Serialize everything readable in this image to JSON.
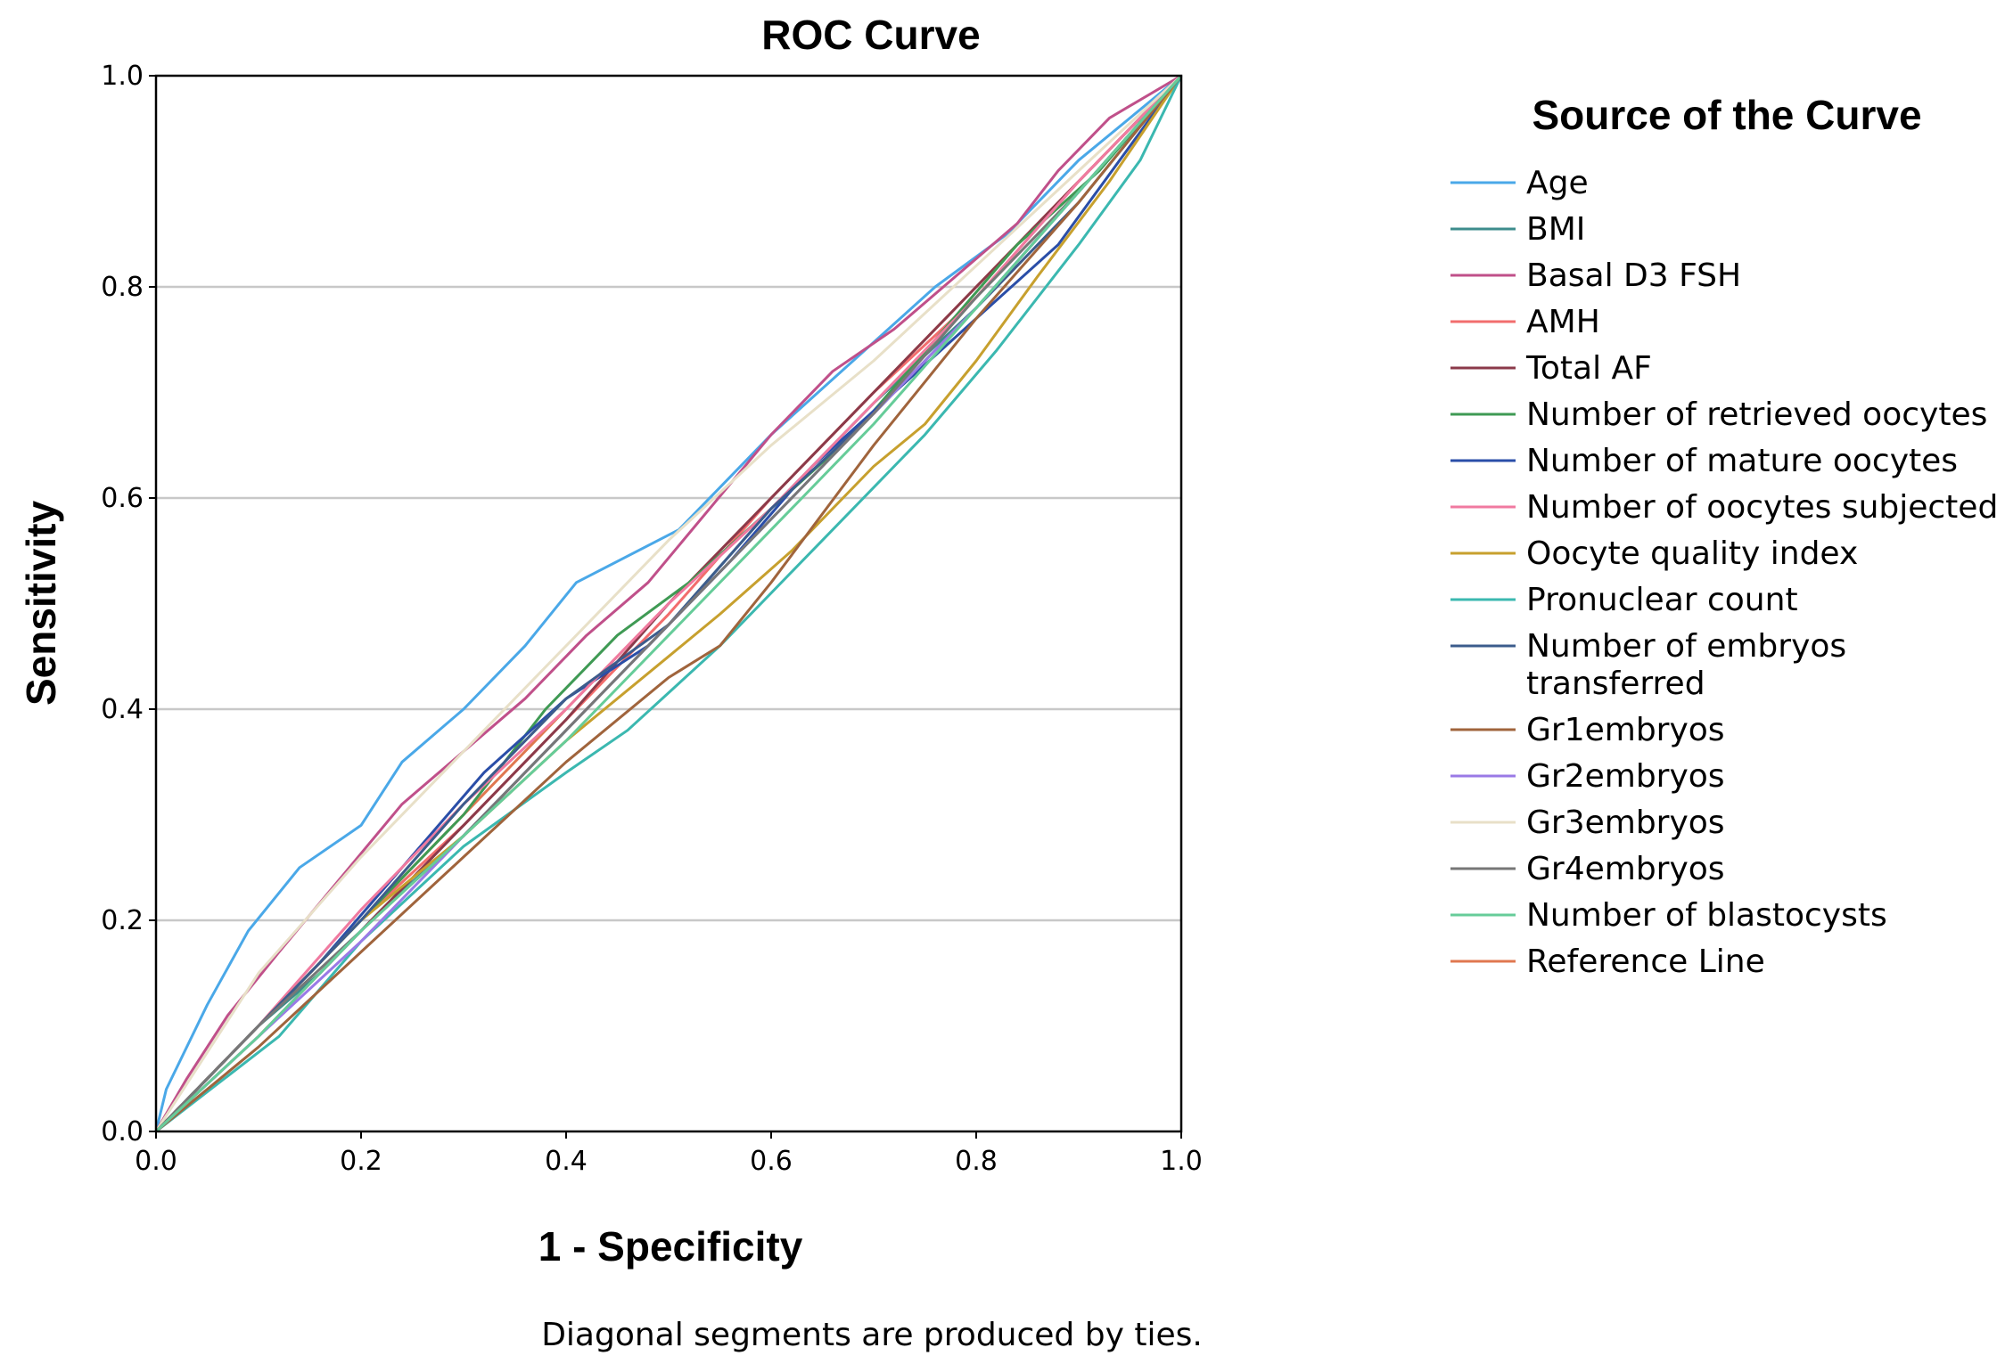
{
  "chart_data": {
    "type": "line",
    "title": "ROC Curve",
    "xlabel": "1 - Specificity",
    "ylabel": "Sensitivity",
    "xlim": [
      0.0,
      1.0
    ],
    "ylim": [
      0.0,
      1.0
    ],
    "x_ticks": [
      "0.0",
      "0.2",
      "0.4",
      "0.6",
      "0.8",
      "1.0"
    ],
    "y_ticks": [
      "0.0",
      "0.2",
      "0.4",
      "0.6",
      "0.8",
      "1.0"
    ],
    "grid": "horizontal",
    "legend_title": "Source of the Curve",
    "legend_position": "right",
    "note": "Diagonal segments are produced by ties.",
    "series": [
      {
        "name": "Age",
        "color": "#4aa8e8",
        "x": [
          0,
          0.01,
          0.05,
          0.09,
          0.14,
          0.2,
          0.24,
          0.3,
          0.36,
          0.41,
          0.51,
          0.6,
          0.76,
          0.83,
          0.9,
          1.0
        ],
        "y": [
          0,
          0.04,
          0.12,
          0.19,
          0.25,
          0.29,
          0.35,
          0.4,
          0.46,
          0.52,
          0.57,
          0.66,
          0.8,
          0.85,
          0.92,
          1.0
        ]
      },
      {
        "name": "BMI",
        "color": "#3d8c8c",
        "x": [
          0,
          0.05,
          0.1,
          0.16,
          0.22,
          0.3,
          0.4,
          0.5,
          0.6,
          0.7,
          0.8,
          0.9,
          1.0
        ],
        "y": [
          0,
          0.05,
          0.1,
          0.15,
          0.21,
          0.28,
          0.38,
          0.48,
          0.59,
          0.69,
          0.78,
          0.89,
          1.0
        ]
      },
      {
        "name": "Basal D3 FSH",
        "color": "#c0508a",
        "x": [
          0,
          0.03,
          0.07,
          0.12,
          0.18,
          0.24,
          0.3,
          0.36,
          0.42,
          0.48,
          0.54,
          0.6,
          0.66,
          0.72,
          0.78,
          0.84,
          0.88,
          0.93,
          1.0
        ],
        "y": [
          0,
          0.05,
          0.11,
          0.17,
          0.24,
          0.31,
          0.36,
          0.41,
          0.47,
          0.52,
          0.59,
          0.66,
          0.72,
          0.76,
          0.81,
          0.86,
          0.91,
          0.96,
          1.0
        ]
      },
      {
        "name": "AMH",
        "color": "#f26d6d",
        "x": [
          0,
          0.1,
          0.2,
          0.3,
          0.4,
          0.5,
          0.6,
          0.7,
          0.8,
          0.9,
          1.0
        ],
        "y": [
          0,
          0.1,
          0.2,
          0.29,
          0.39,
          0.49,
          0.6,
          0.7,
          0.79,
          0.9,
          1.0
        ]
      },
      {
        "name": "Total AF",
        "color": "#8b3a4a",
        "x": [
          0,
          0.1,
          0.2,
          0.3,
          0.4,
          0.5,
          0.6,
          0.7,
          0.8,
          0.9,
          1.0
        ],
        "y": [
          0,
          0.09,
          0.19,
          0.29,
          0.39,
          0.5,
          0.6,
          0.7,
          0.8,
          0.9,
          1.0
        ]
      },
      {
        "name": "Number of retrieved oocytes",
        "color": "#3f9a54",
        "x": [
          0,
          0.08,
          0.15,
          0.23,
          0.3,
          0.38,
          0.45,
          0.52,
          0.6,
          0.68,
          0.76,
          0.84,
          0.92,
          1.0
        ],
        "y": [
          0,
          0.08,
          0.15,
          0.23,
          0.3,
          0.4,
          0.47,
          0.52,
          0.59,
          0.66,
          0.75,
          0.84,
          0.91,
          1.0
        ]
      },
      {
        "name": "Number of mature oocytes",
        "color": "#2a4ea8",
        "x": [
          0,
          0.08,
          0.16,
          0.24,
          0.32,
          0.4,
          0.48,
          0.56,
          0.64,
          0.72,
          0.8,
          0.88,
          1.0
        ],
        "y": [
          0,
          0.08,
          0.16,
          0.25,
          0.34,
          0.41,
          0.46,
          0.54,
          0.63,
          0.7,
          0.77,
          0.84,
          1.0
        ]
      },
      {
        "name": "Number of oocytes subjected to ICSI",
        "color": "#f07aa0",
        "x": [
          0,
          0.1,
          0.2,
          0.3,
          0.4,
          0.5,
          0.6,
          0.7,
          0.8,
          0.9,
          1.0
        ],
        "y": [
          0,
          0.1,
          0.21,
          0.31,
          0.4,
          0.5,
          0.59,
          0.69,
          0.79,
          0.9,
          1.0
        ]
      },
      {
        "name": "Oocyte quality index",
        "color": "#c7a02e",
        "x": [
          0,
          0.1,
          0.2,
          0.3,
          0.4,
          0.5,
          0.55,
          0.62,
          0.7,
          0.75,
          0.8,
          0.86,
          0.93,
          1.0
        ],
        "y": [
          0,
          0.1,
          0.2,
          0.28,
          0.37,
          0.45,
          0.49,
          0.55,
          0.63,
          0.67,
          0.73,
          0.81,
          0.9,
          1.0
        ]
      },
      {
        "name": "Pronuclear count",
        "color": "#3bb8b0",
        "x": [
          0,
          0.12,
          0.2,
          0.3,
          0.4,
          0.46,
          0.55,
          0.65,
          0.75,
          0.82,
          0.9,
          0.96,
          1.0
        ],
        "y": [
          0,
          0.09,
          0.18,
          0.27,
          0.34,
          0.38,
          0.46,
          0.56,
          0.66,
          0.74,
          0.84,
          0.92,
          1.0
        ]
      },
      {
        "name": "Number of embryos transferred",
        "color": "#3c5c8c",
        "x": [
          0,
          0.1,
          0.2,
          0.3,
          0.4,
          0.5,
          0.6,
          0.7,
          0.8,
          0.9,
          1.0
        ],
        "y": [
          0,
          0.1,
          0.2,
          0.31,
          0.41,
          0.48,
          0.59,
          0.68,
          0.78,
          0.88,
          1.0
        ]
      },
      {
        "name": "Gr1embryos",
        "color": "#a0643c",
        "x": [
          0,
          0.1,
          0.2,
          0.3,
          0.4,
          0.5,
          0.55,
          0.6,
          0.7,
          0.8,
          0.9,
          1.0
        ],
        "y": [
          0,
          0.08,
          0.17,
          0.26,
          0.35,
          0.43,
          0.46,
          0.52,
          0.65,
          0.77,
          0.88,
          1.0
        ]
      },
      {
        "name": "Gr2embryos",
        "color": "#9a7ae6",
        "x": [
          0,
          0.1,
          0.2,
          0.3,
          0.4,
          0.5,
          0.6,
          0.7,
          0.8,
          0.9,
          1.0
        ],
        "y": [
          0,
          0.09,
          0.18,
          0.28,
          0.38,
          0.48,
          0.58,
          0.68,
          0.78,
          0.89,
          1.0
        ]
      },
      {
        "name": "Gr3embryos",
        "color": "#e8e0c8",
        "x": [
          0,
          0.1,
          0.2,
          0.3,
          0.4,
          0.5,
          0.6,
          0.7,
          0.8,
          0.9,
          1.0
        ],
        "y": [
          0,
          0.15,
          0.26,
          0.36,
          0.46,
          0.56,
          0.65,
          0.73,
          0.82,
          0.91,
          1.0
        ]
      },
      {
        "name": "Gr4embryos",
        "color": "#777777",
        "x": [
          0,
          0.1,
          0.2,
          0.3,
          0.4,
          0.5,
          0.6,
          0.7,
          0.8,
          0.9,
          1.0
        ],
        "y": [
          0,
          0.1,
          0.19,
          0.28,
          0.38,
          0.48,
          0.58,
          0.68,
          0.79,
          0.89,
          1.0
        ]
      },
      {
        "name": "Number of blastocysts",
        "color": "#66cc99",
        "x": [
          0,
          0.1,
          0.2,
          0.3,
          0.4,
          0.5,
          0.6,
          0.7,
          0.8,
          0.9,
          1.0
        ],
        "y": [
          0,
          0.09,
          0.19,
          0.28,
          0.37,
          0.47,
          0.57,
          0.67,
          0.78,
          0.89,
          1.0
        ]
      },
      {
        "name": "Reference Line",
        "color": "#e07850",
        "x": [
          0,
          1.0
        ],
        "y": [
          0,
          1.0
        ]
      }
    ]
  }
}
